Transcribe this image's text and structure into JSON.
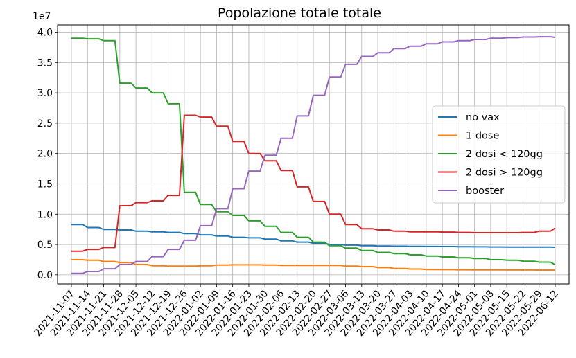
{
  "chart_data": {
    "type": "line",
    "title": "Popolazione totale totale",
    "xlabel": "",
    "ylabel": "",
    "y_offset_label": "1e7",
    "y_scale": 10000000,
    "ylim": [
      -1500000,
      41200000
    ],
    "yticks": [
      0,
      5000000,
      10000000,
      15000000,
      20000000,
      25000000,
      30000000,
      35000000,
      40000000
    ],
    "ytick_labels": [
      "0.0",
      "0.5",
      "1.0",
      "1.5",
      "2.0",
      "2.5",
      "3.0",
      "3.5",
      "4.0"
    ],
    "grid": true,
    "legend_position": "center-right",
    "x": [
      "2021-11-07",
      "2021-11-14",
      "2021-11-21",
      "2021-11-28",
      "2021-12-05",
      "2021-12-12",
      "2021-12-19",
      "2021-12-26",
      "2022-01-02",
      "2022-01-09",
      "2022-01-16",
      "2022-01-23",
      "2022-01-30",
      "2022-02-06",
      "2022-02-13",
      "2022-02-20",
      "2022-02-27",
      "2022-03-06",
      "2022-03-13",
      "2022-03-20",
      "2022-03-27",
      "2022-04-03",
      "2022-04-10",
      "2022-04-17",
      "2022-04-24",
      "2022-05-01",
      "2022-05-08",
      "2022-05-15",
      "2022-05-22",
      "2022-05-29",
      "2022-06-12"
    ],
    "series": [
      {
        "name": "no vax",
        "color": "#1f77b4",
        "values": [
          8300000,
          7800000,
          7500000,
          7400000,
          7200000,
          7100000,
          7000000,
          6800000,
          6600000,
          6400000,
          6200000,
          6100000,
          5900000,
          5600000,
          5400000,
          5200000,
          5000000,
          4900000,
          4800000,
          4750000,
          4720000,
          4700000,
          4680000,
          4660000,
          4640000,
          4620000,
          4600000,
          4590000,
          4580000,
          4570000,
          4550000
        ]
      },
      {
        "name": "1 dose",
        "color": "#ff7f0e",
        "values": [
          2500000,
          2400000,
          2200000,
          2000000,
          1700000,
          1500000,
          1450000,
          1450000,
          1500000,
          1600000,
          1650000,
          1650000,
          1600000,
          1550000,
          1560000,
          1560000,
          1550000,
          1450000,
          1350000,
          1200000,
          1050000,
          950000,
          880000,
          850000,
          830000,
          820000,
          810000,
          800000,
          790000,
          780000,
          770000
        ]
      },
      {
        "name": "2 dosi < 120gg",
        "color": "#2ca02c",
        "values": [
          39000000,
          38900000,
          38600000,
          31600000,
          30800000,
          30000000,
          28200000,
          13600000,
          11600000,
          10400000,
          9800000,
          8900000,
          8000000,
          7000000,
          6200000,
          5400000,
          4800000,
          4400000,
          4000000,
          3700000,
          3500000,
          3300000,
          3100000,
          2950000,
          2800000,
          2700000,
          2500000,
          2400000,
          2250000,
          2100000,
          1650000
        ]
      },
      {
        "name": "2 dosi > 120gg",
        "color": "#d62728",
        "values": [
          3900000,
          4200000,
          4500000,
          11400000,
          11900000,
          12200000,
          13100000,
          26300000,
          26000000,
          24500000,
          22000000,
          20000000,
          18800000,
          17200000,
          14500000,
          12100000,
          10000000,
          8300000,
          7600000,
          7400000,
          7200000,
          7100000,
          7100000,
          7050000,
          7000000,
          6950000,
          6950000,
          6950000,
          7000000,
          7200000,
          7700000
        ]
      },
      {
        "name": "booster",
        "color": "#9467bd",
        "values": [
          250000,
          550000,
          1000000,
          1700000,
          2200000,
          3000000,
          4200000,
          5700000,
          8100000,
          10900000,
          14200000,
          17100000,
          19700000,
          22500000,
          26200000,
          29600000,
          32600000,
          34700000,
          36000000,
          36600000,
          37300000,
          37700000,
          38100000,
          38400000,
          38600000,
          38800000,
          39000000,
          39100000,
          39200000,
          39250000,
          39150000
        ]
      }
    ]
  }
}
